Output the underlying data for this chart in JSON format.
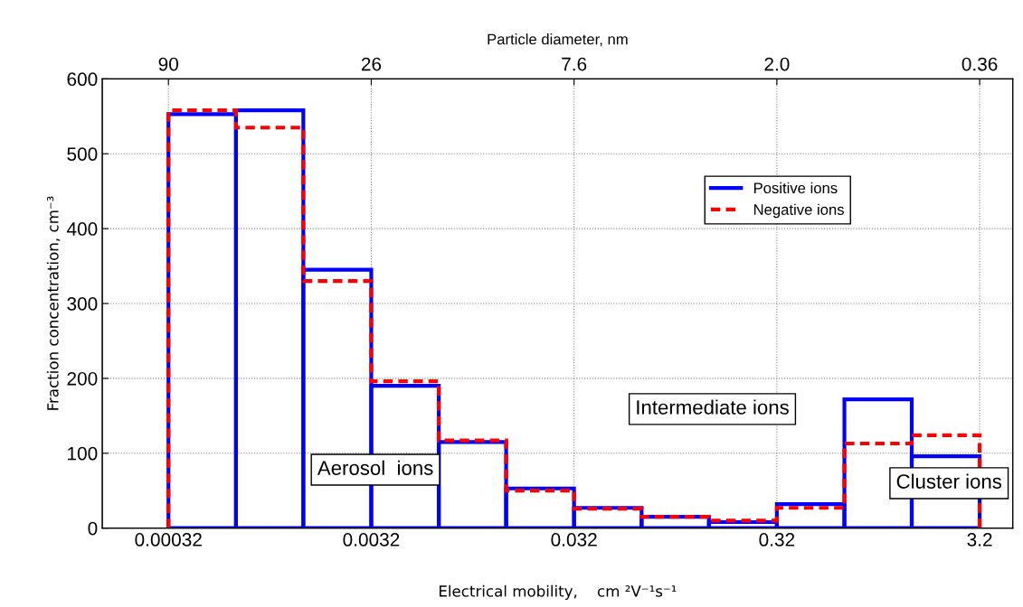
{
  "chart_data": {
    "type": "histogram",
    "xlabel": "Electrical mobility,    cm ²V⁻¹s⁻¹",
    "ylabel": "Fraction concentration, cm⁻³",
    "x2label": "Particle diameter, nm",
    "log": "x",
    "bins": [
      0.00032,
      0.000689,
      0.00148,
      0.0032,
      0.00689,
      0.0148,
      0.032,
      0.0689,
      0.148,
      0.32,
      0.689,
      1.48,
      3.2
    ],
    "series": [
      {
        "name": "Positive ions",
        "color": "#0000ff",
        "line_style": "solid",
        "values": [
          553,
          558,
          345,
          190,
          115,
          53,
          27,
          15,
          8,
          32,
          172,
          96
        ]
      },
      {
        "name": "Negative ions",
        "color": "#ff0000",
        "line_style": "dashed",
        "values": [
          558,
          535,
          330,
          196,
          117,
          50,
          26,
          15,
          10,
          27,
          113,
          124
        ]
      }
    ],
    "xlim": [
      0.000151,
      4.66
    ],
    "xticks": [
      0.00032,
      0.0032,
      0.032,
      0.32,
      3.2
    ],
    "ylim": [
      0,
      600
    ],
    "yticks": [
      0,
      100,
      200,
      300,
      400,
      500,
      600
    ],
    "grid": true,
    "legend": "top right",
    "annotations": [
      "90",
      "26",
      "7.6",
      "2.0",
      "0.36",
      "Aerosol  ions",
      "Intermediate ions",
      "Cluster ions"
    ]
  }
}
